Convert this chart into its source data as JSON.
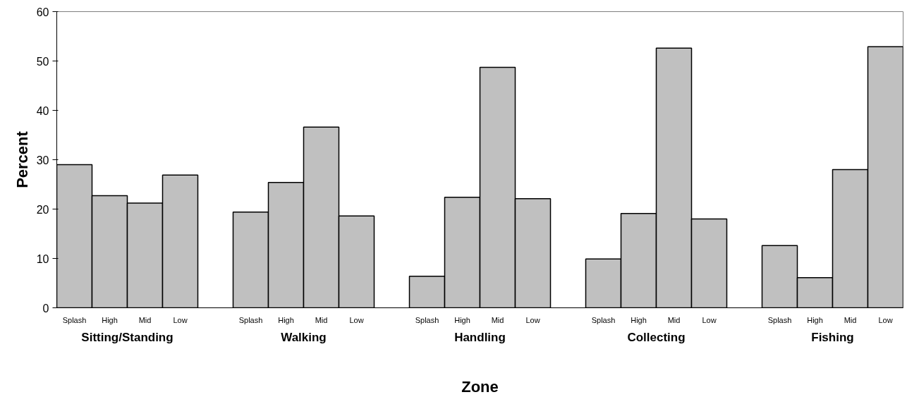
{
  "chart_data": {
    "type": "bar",
    "xlabel": "Zone",
    "ylabel": "Percent",
    "categories": [
      "Splash",
      "High",
      "Mid",
      "Low",
      null,
      "Splash",
      "High",
      "Mid",
      "Low",
      null,
      "Splash",
      "High",
      "Mid",
      "Low",
      null,
      "Splash",
      "High",
      "Mid",
      "Low",
      null,
      "Splash",
      "High",
      "Mid",
      "Low"
    ],
    "values": [
      29.0,
      22.7,
      21.2,
      26.9,
      null,
      19.4,
      25.4,
      36.6,
      18.6,
      null,
      6.4,
      22.4,
      48.7,
      22.1,
      null,
      9.9,
      19.1,
      52.6,
      18.0,
      null,
      12.6,
      6.1,
      28.0,
      52.9
    ],
    "color": "#c0c0c0",
    "annotations": [
      "Sitting/Standing",
      "Walking",
      "Handling",
      "Collecting",
      "Fishing"
    ],
    "ylim": [
      0,
      60
    ],
    "yticks": [
      0,
      10,
      20,
      30,
      40,
      50,
      60
    ],
    "grid": false
  }
}
